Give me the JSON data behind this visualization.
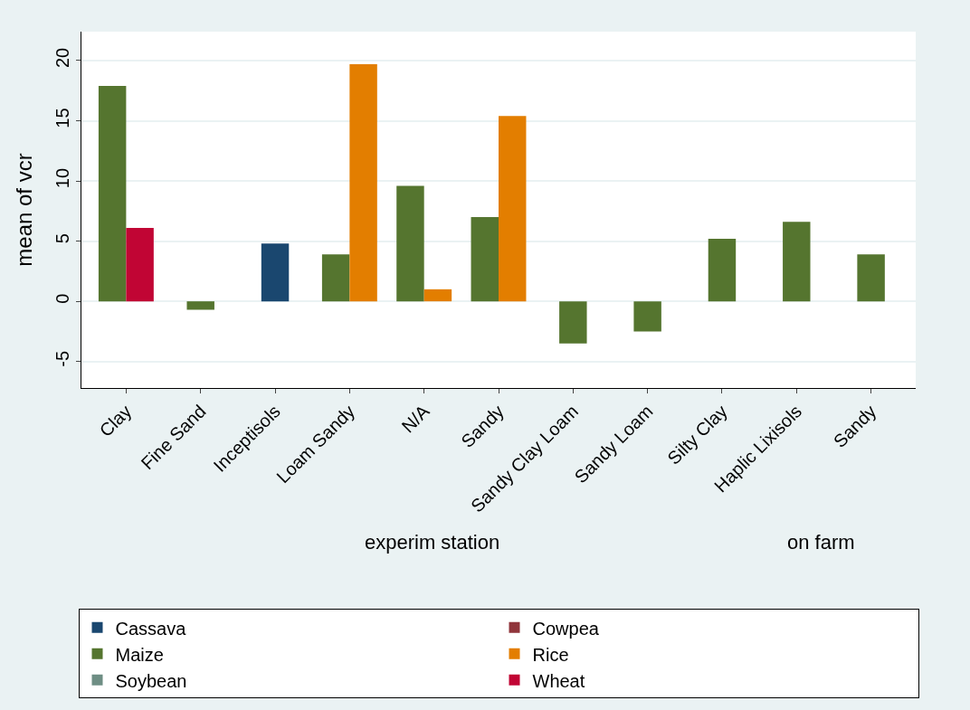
{
  "chart_data": {
    "type": "bar",
    "ylabel": "mean of vcr",
    "categories": [
      "Clay",
      "Fine Sand",
      "Inceptisols",
      "Loam Sandy",
      "N/A",
      "Sandy",
      "Sandy Clay Loam",
      "Sandy Loam",
      "Silty Clay",
      "Haplic Lixisols",
      "Sandy"
    ],
    "series": [
      {
        "name": "Cassava",
        "color": "#1a476f",
        "values": [
          null,
          null,
          4.8,
          null,
          null,
          null,
          null,
          null,
          null,
          null,
          null
        ]
      },
      {
        "name": "Cowpea",
        "color": "#90353b",
        "values": [
          null,
          null,
          null,
          null,
          null,
          null,
          null,
          null,
          null,
          null,
          null
        ]
      },
      {
        "name": "Maize",
        "color": "#55752f",
        "values": [
          17.9,
          -0.7,
          null,
          3.9,
          9.6,
          7.0,
          -3.5,
          -2.5,
          5.2,
          6.6,
          3.9
        ]
      },
      {
        "name": "Rice",
        "color": "#e37e00",
        "values": [
          null,
          null,
          null,
          19.7,
          1.0,
          15.4,
          null,
          null,
          null,
          null,
          null
        ]
      },
      {
        "name": "Soybean",
        "color": "#6e8e84",
        "values": [
          null,
          null,
          null,
          null,
          null,
          null,
          null,
          null,
          null,
          null,
          null
        ]
      },
      {
        "name": "Wheat",
        "color": "#c10534",
        "values": [
          6.1,
          null,
          null,
          null,
          null,
          null,
          null,
          null,
          null,
          null,
          null
        ]
      }
    ],
    "ylim": [
      -7.2,
      22.4
    ],
    "yticks": [
      -5,
      0,
      5,
      10,
      15,
      20
    ],
    "grid": "y",
    "legend": "bottom",
    "annotations": [
      "experim station",
      "on farm"
    ]
  }
}
